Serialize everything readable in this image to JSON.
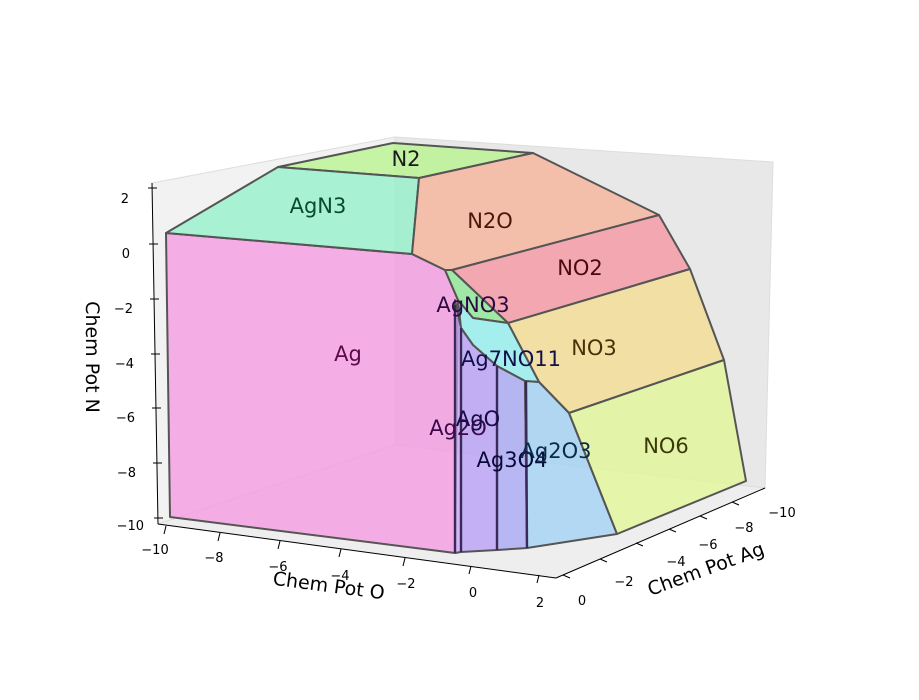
{
  "chart_data": {
    "type": "3d-polytope",
    "title": "",
    "axes": {
      "x": {
        "label": "Chem Pot Ag",
        "ticks": [
          "0",
          "−2",
          "−4",
          "−6",
          "−8",
          "−10"
        ]
      },
      "y": {
        "label": "Chem Pot O",
        "ticks": [
          "−10",
          "−8",
          "−6",
          "−4",
          "−2",
          "0",
          "2"
        ]
      },
      "z": {
        "label": "Chem Pot N",
        "ticks": [
          "2",
          "0",
          "−2",
          "−4",
          "−6",
          "−8",
          "−10"
        ]
      }
    },
    "regions": [
      {
        "name": "N2",
        "color": "#b5f58a",
        "label_color": "#1a1a1a"
      },
      {
        "name": "AgN3",
        "color": "#8ff2c8",
        "label_color": "#0a4a2e"
      },
      {
        "name": "N2O",
        "color": "#f7b196",
        "label_color": "#4a1808"
      },
      {
        "name": "NO2",
        "color": "#f7939f",
        "label_color": "#4a0810"
      },
      {
        "name": "AgNO3",
        "color": "#88e890",
        "label_color": "#2a0a40"
      },
      {
        "name": "NO3",
        "color": "#f6dc8e",
        "label_color": "#4a3008"
      },
      {
        "name": "Ag",
        "color": "#f597e0",
        "label_color": "#5a0a48"
      },
      {
        "name": "Ag7NO11",
        "color": "#8ef0f0",
        "label_color": "#10104a"
      },
      {
        "name": "Ag2O",
        "color": "#c9a3f5",
        "label_color": "#3a0a4a"
      },
      {
        "name": "AgO",
        "color": "#b69cf7",
        "label_color": "#1a0a4a"
      },
      {
        "name": "Ag3O4",
        "color": "#a4a4f5",
        "label_color": "#0a0a3a"
      },
      {
        "name": "Ag2O3",
        "color": "#9dd0f5",
        "label_color": "#0a2a4a"
      },
      {
        "name": "NO6",
        "color": "#e1f791",
        "label_color": "#3a3a08"
      }
    ]
  }
}
